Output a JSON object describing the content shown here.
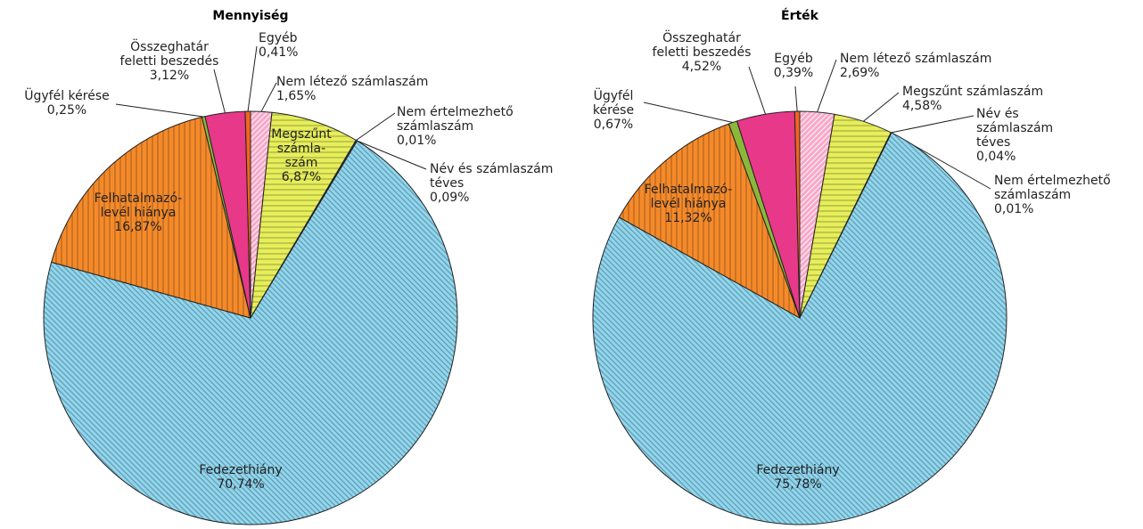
{
  "chart_data": [
    {
      "type": "pie",
      "title": "Mennyiség",
      "categories": [
        "Nem létező számlaszám",
        "Megszűnt\nszámla-\nszám",
        "Nem értelmezhető\nszámlaszám",
        "Név és számlaszám\ntéves",
        "Fedezethiány",
        "Felhatalmazó-\nlevél hiánya",
        "Ügyfél kérése",
        "Összeghatár\nfeletti beszedés",
        "Egyéb"
      ],
      "values": [
        1.65,
        6.87,
        0.01,
        0.09,
        70.74,
        16.87,
        0.25,
        3.12,
        0.41
      ],
      "value_labels": [
        "1,65%",
        "6,87%",
        "0,01%",
        "0,09%",
        "70,74%",
        "16,87%",
        "0,25%",
        "3,12%",
        "0,41%"
      ],
      "colors": [
        "#f7a8c8",
        "#e6ee5a",
        "#f4a0b0",
        "#3a7fc0",
        "#8fd6ef",
        "#f58a2a",
        "#8cb83a",
        "#e8388a",
        "#f26522"
      ],
      "hatch": [
        "diag-up",
        "horizontal",
        "none",
        "none",
        "diag-down",
        "vertical",
        "none",
        "none",
        "none"
      ]
    },
    {
      "type": "pie",
      "title": "Érték",
      "categories": [
        "Nem létező számlaszám",
        "Megszűnt számlaszám",
        "Név és\nszámlaszám\ntéves",
        "Nem értelmezhető\nszámlaszám",
        "Fedezethiány",
        "Felhatalmazó-\nlevél hiánya",
        "Ügyfél\nkérése",
        "Összeghatár\nfeletti beszedés",
        "Egyéb"
      ],
      "values": [
        2.69,
        4.58,
        0.04,
        0.01,
        75.78,
        11.32,
        0.67,
        4.52,
        0.39
      ],
      "value_labels": [
        "2,69%",
        "4,58%",
        "0,04%",
        "0,01%",
        "75,78%",
        "11,32%",
        "0,67%",
        "4,52%",
        "0,39%"
      ],
      "colors": [
        "#f7a8c8",
        "#e6ee5a",
        "#3a7fc0",
        "#f4a0b0",
        "#8fd6ef",
        "#f58a2a",
        "#8cb83a",
        "#e8388a",
        "#f26522"
      ],
      "hatch": [
        "diag-up",
        "horizontal",
        "none",
        "none",
        "diag-down",
        "vertical",
        "none",
        "none",
        "none"
      ]
    }
  ]
}
